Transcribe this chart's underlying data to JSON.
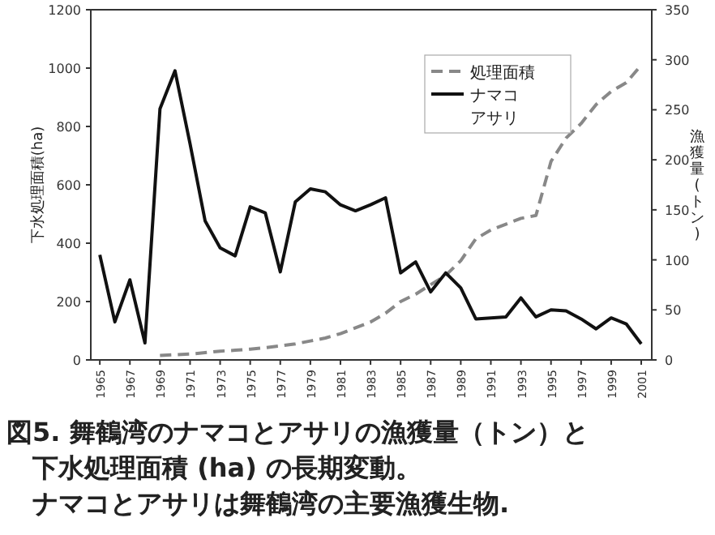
{
  "chart_data": {
    "type": "line",
    "xlabel": null,
    "ylabel": "下水処理面積(ha)",
    "y2label": "漁獲量(トン)",
    "x": [
      1965,
      1966,
      1967,
      1968,
      1969,
      1970,
      1971,
      1972,
      1973,
      1974,
      1975,
      1976,
      1977,
      1978,
      1979,
      1980,
      1981,
      1982,
      1983,
      1984,
      1985,
      1986,
      1987,
      1988,
      1989,
      1990,
      1991,
      1992,
      1993,
      1994,
      1995,
      1996,
      1997,
      1998,
      1999,
      2000,
      2001
    ],
    "series": [
      {
        "name": "処理面積",
        "color": "#888888",
        "line_style": "dashed",
        "values": [
          null,
          null,
          null,
          null,
          15,
          18,
          20,
          25,
          30,
          33,
          37,
          42,
          48,
          55,
          65,
          75,
          90,
          110,
          130,
          160,
          200,
          225,
          258,
          290,
          340,
          415,
          445,
          465,
          485,
          495,
          680,
          760,
          810,
          875,
          920,
          950,
          1010
        ]
      },
      {
        "name": "ナマコ",
        "color": "#111111",
        "axis": "y2",
        "line_style": "solid",
        "values": [
          105,
          38,
          80,
          17,
          251,
          289,
          216,
          139,
          112,
          104,
          153,
          147,
          88,
          158,
          171,
          168,
          155,
          149,
          155,
          162,
          87,
          98,
          68,
          87,
          72,
          41,
          42,
          43,
          62,
          43,
          50,
          49,
          41,
          31,
          42,
          36,
          16
        ]
      }
    ],
    "xlim": [
      1964.4,
      2001.7
    ],
    "xticks": [
      1965,
      1967,
      1969,
      1971,
      1973,
      1975,
      1977,
      1979,
      1981,
      1983,
      1985,
      1987,
      1989,
      1991,
      1993,
      1995,
      1997,
      1999,
      2001
    ],
    "ylim": [
      0,
      1200
    ],
    "yticks": [
      0,
      200,
      400,
      600,
      800,
      1000,
      1200
    ],
    "y2lim": [
      0,
      350
    ],
    "y2ticks": [
      0,
      50,
      100,
      150,
      200,
      250,
      300,
      350
    ],
    "grid": false,
    "legend": "top right",
    "annotations": [
      "アサリ",
      "図5. 舞鶴湾のナマコとアサリの漁獲量（トン）と",
      "下水処理面積 (ha) の長期変動。",
      "ナマコとアサリは舞鶴湾の主要漁獲生物."
    ]
  }
}
